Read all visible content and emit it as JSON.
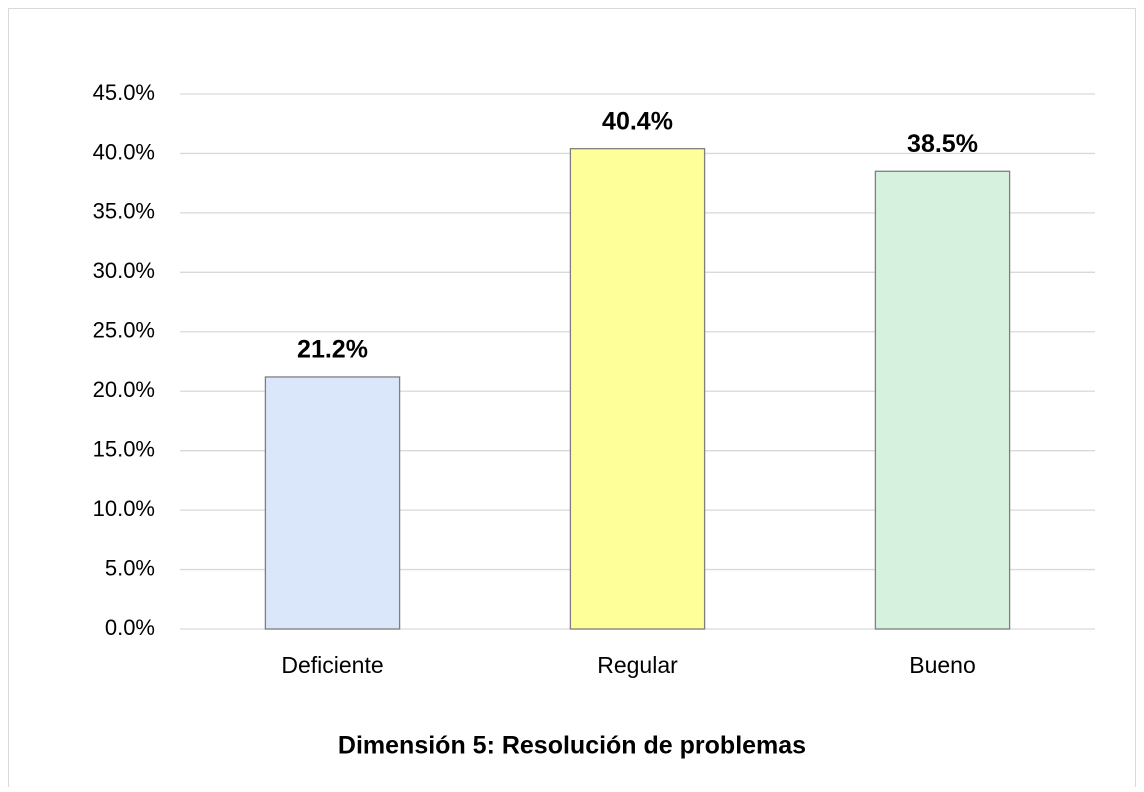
{
  "chart_data": {
    "type": "bar",
    "title": "Dimensión 5: Resolución de problemas",
    "categories": [
      "Deficiente",
      "Regular",
      "Bueno"
    ],
    "values": [
      21.2,
      40.4,
      38.5
    ],
    "value_labels": [
      "21.2%",
      "40.4%",
      "38.5%"
    ],
    "colors": [
      "#dae7fb",
      "#ffff99",
      "#d6f2de"
    ],
    "ylim": [
      0,
      45
    ],
    "yticks": [
      {
        "value": 0,
        "label": "0.0%"
      },
      {
        "value": 5,
        "label": "5.0%"
      },
      {
        "value": 10,
        "label": "10.0%"
      },
      {
        "value": 15,
        "label": "15.0%"
      },
      {
        "value": 20,
        "label": "20.0%"
      },
      {
        "value": 25,
        "label": "25.0%"
      },
      {
        "value": 30,
        "label": "30.0%"
      },
      {
        "value": 35,
        "label": "35.0%"
      },
      {
        "value": 40,
        "label": "40.0%"
      },
      {
        "value": 45,
        "label": "45.0%"
      }
    ],
    "grid": true
  }
}
